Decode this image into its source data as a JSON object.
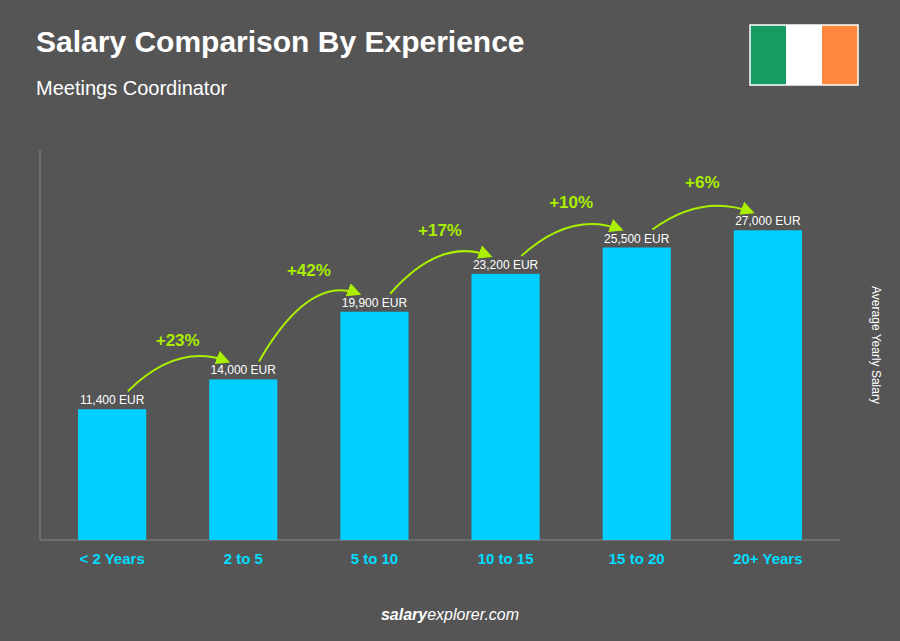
{
  "chart_data": {
    "type": "bar",
    "title": "Salary Comparison By Experience",
    "subtitle": "Meetings Coordinator",
    "y_label": "Average Yearly Salary",
    "categories": [
      "< 2 Years",
      "2 to 5",
      "5 to 10",
      "10 to 15",
      "15 to 20",
      "20+ Years"
    ],
    "values": [
      11400,
      14000,
      19900,
      23200,
      25500,
      27000
    ],
    "value_labels": [
      "11,400 EUR",
      "14,000 EUR",
      "19,900 EUR",
      "23,200 EUR",
      "25,500 EUR",
      "27,000 EUR"
    ],
    "data_labels": true,
    "annotations": [
      "+23%",
      "+42%",
      "+17%",
      "+10%",
      "+6%"
    ],
    "footer": [
      "salary",
      "explorer.com"
    ],
    "color": "#00CFFF",
    "ylim": [
      0,
      34000
    ],
    "grid": false,
    "tick_labels": "x"
  }
}
